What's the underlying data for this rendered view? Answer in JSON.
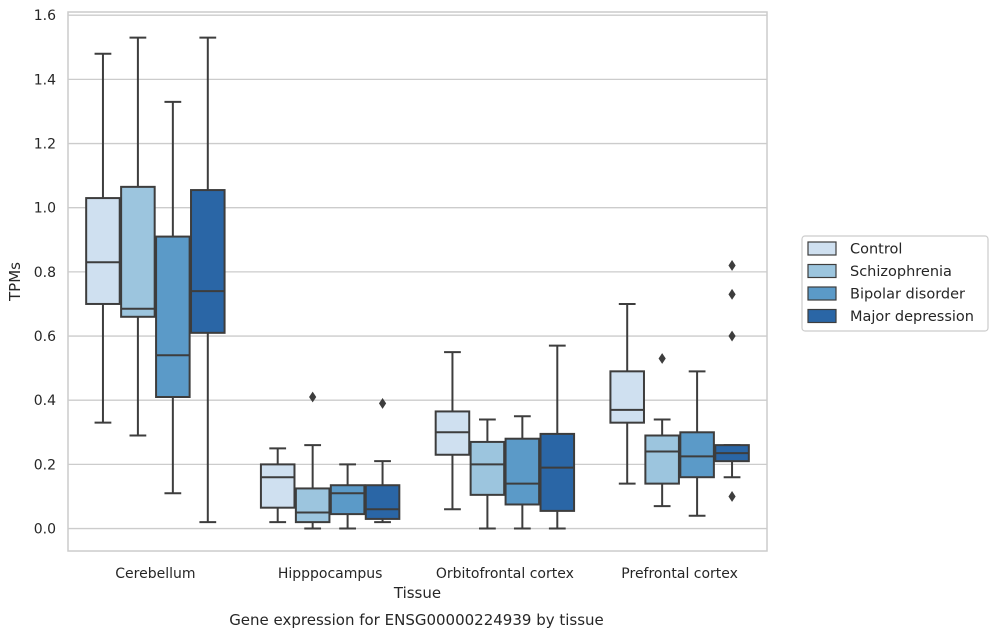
{
  "chart_data": {
    "type": "box",
    "title": "",
    "caption": "Gene expression for ENSG00000224939 by tissue",
    "xlabel": "Tissue",
    "ylabel": "TPMs",
    "ylim": [
      -0.07,
      1.61
    ],
    "yticks": [
      0.0,
      0.2,
      0.4,
      0.6,
      0.8,
      1.0,
      1.2,
      1.4,
      1.6
    ],
    "ytick_labels": [
      "0.0",
      "0.2",
      "0.4",
      "0.6",
      "0.8",
      "1.0",
      "1.2",
      "1.4",
      "1.6"
    ],
    "grid": "horizontal",
    "legend_position": "right",
    "categories": [
      "Cerebellum",
      "Hipppocampus",
      "Orbitofrontal cortex",
      "Prefrontal cortex"
    ],
    "series": [
      {
        "name": "Control",
        "color": "#cfe0f0",
        "boxes": [
          {
            "whisker_low": 0.33,
            "q1": 0.7,
            "median": 0.83,
            "q3": 1.03,
            "whisker_high": 1.48,
            "outliers": []
          },
          {
            "whisker_low": 0.02,
            "q1": 0.065,
            "median": 0.16,
            "q3": 0.2,
            "whisker_high": 0.25,
            "outliers": []
          },
          {
            "whisker_low": 0.06,
            "q1": 0.23,
            "median": 0.3,
            "q3": 0.365,
            "whisker_high": 0.55,
            "outliers": []
          },
          {
            "whisker_low": 0.14,
            "q1": 0.33,
            "median": 0.37,
            "q3": 0.49,
            "whisker_high": 0.7,
            "outliers": []
          }
        ]
      },
      {
        "name": "Schizophrenia",
        "color": "#9cc5de",
        "boxes": [
          {
            "whisker_low": 0.29,
            "q1": 0.66,
            "median": 0.685,
            "q3": 1.065,
            "whisker_high": 1.53,
            "outliers": []
          },
          {
            "whisker_low": 0.0,
            "q1": 0.02,
            "median": 0.05,
            "q3": 0.125,
            "whisker_high": 0.26,
            "outliers": [
              0.41
            ]
          },
          {
            "whisker_low": 0.0,
            "q1": 0.105,
            "median": 0.2,
            "q3": 0.27,
            "whisker_high": 0.34,
            "outliers": []
          },
          {
            "whisker_low": 0.07,
            "q1": 0.14,
            "median": 0.24,
            "q3": 0.29,
            "whisker_high": 0.34,
            "outliers": [
              0.53
            ]
          }
        ]
      },
      {
        "name": "Bipolar disorder",
        "color": "#5b9ac8",
        "boxes": [
          {
            "whisker_low": 0.11,
            "q1": 0.41,
            "median": 0.54,
            "q3": 0.91,
            "whisker_high": 1.33,
            "outliers": []
          },
          {
            "whisker_low": 0.0,
            "q1": 0.045,
            "median": 0.11,
            "q3": 0.135,
            "whisker_high": 0.2,
            "outliers": []
          },
          {
            "whisker_low": 0.0,
            "q1": 0.075,
            "median": 0.14,
            "q3": 0.28,
            "whisker_high": 0.35,
            "outliers": []
          },
          {
            "whisker_low": 0.04,
            "q1": 0.16,
            "median": 0.225,
            "q3": 0.3,
            "whisker_high": 0.49,
            "outliers": []
          }
        ]
      },
      {
        "name": "Major depression",
        "color": "#2a66a6",
        "boxes": [
          {
            "whisker_low": 0.02,
            "q1": 0.61,
            "median": 0.74,
            "q3": 1.055,
            "whisker_high": 1.53,
            "outliers": []
          },
          {
            "whisker_low": 0.02,
            "q1": 0.03,
            "median": 0.06,
            "q3": 0.135,
            "whisker_high": 0.21,
            "outliers": [
              0.39
            ]
          },
          {
            "whisker_low": 0.0,
            "q1": 0.055,
            "median": 0.19,
            "q3": 0.295,
            "whisker_high": 0.57,
            "outliers": []
          },
          {
            "whisker_low": 0.16,
            "q1": 0.21,
            "median": 0.235,
            "q3": 0.26,
            "whisker_high": 0.26,
            "outliers": [
              0.1,
              0.6,
              0.73,
              0.82
            ]
          }
        ]
      }
    ]
  }
}
